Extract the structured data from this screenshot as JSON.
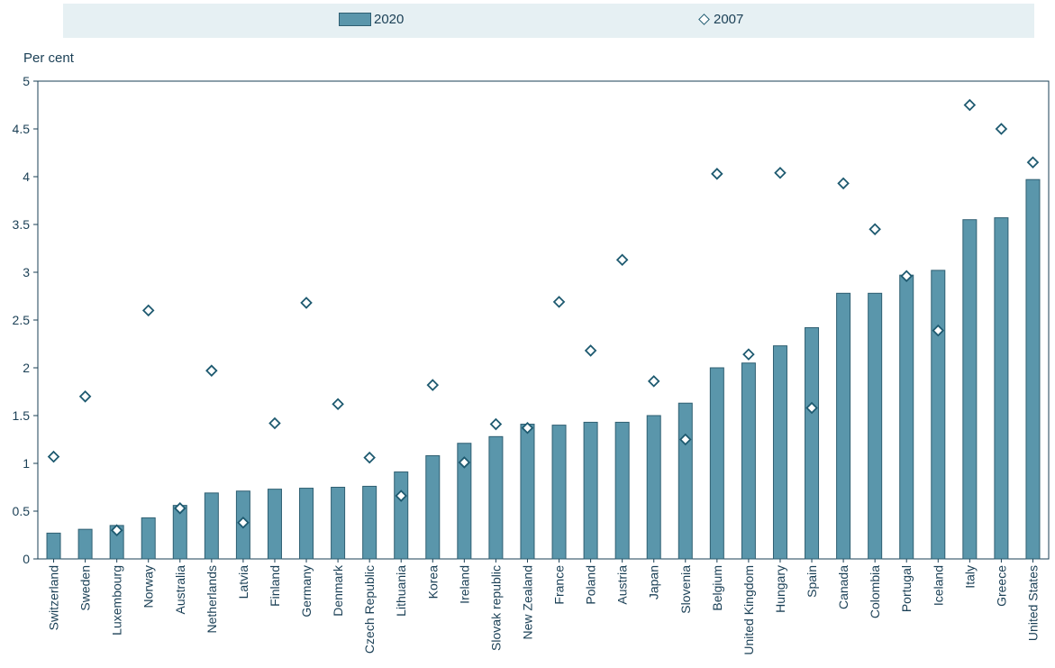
{
  "chart_data": {
    "type": "bar",
    "ylabel": "Per cent",
    "ylim": [
      0,
      5
    ],
    "yticks": [
      "0",
      "0.5",
      "1",
      "1.5",
      "2",
      "2.5",
      "3",
      "3.5",
      "4",
      "4.5",
      "5"
    ],
    "legend_position": "top",
    "colors": {
      "bar": "#5a96ab",
      "bar_edge": "#2f5f72",
      "marker": "#1e5a70",
      "axis": "#1a3f55",
      "grid": "#d9e6eb"
    },
    "categories": [
      "Switzerland",
      "Sweden",
      "Luxembourg",
      "Norway",
      "Australia",
      "Netherlands",
      "Latvia",
      "Finland",
      "Germany",
      "Denmark",
      "Czech Republic",
      "Lithuania",
      "Korea",
      "Ireland",
      "Slovak republic",
      "New Zealand",
      "France",
      "Poland",
      "Austria",
      "Japan",
      "Slovenia",
      "Belgium",
      "United Kingdom",
      "Hungary",
      "Spain",
      "Canada",
      "Colombia",
      "Portugal",
      "Iceland",
      "Italy",
      "Greece",
      "United States"
    ],
    "series": [
      {
        "name": "2020",
        "kind": "bar",
        "values": [
          0.27,
          0.31,
          0.35,
          0.43,
          0.56,
          0.69,
          0.71,
          0.73,
          0.74,
          0.75,
          0.76,
          0.91,
          1.08,
          1.21,
          1.28,
          1.41,
          1.4,
          1.43,
          1.43,
          1.5,
          1.63,
          2.0,
          2.05,
          2.23,
          2.42,
          2.78,
          2.78,
          2.97,
          3.02,
          3.55,
          3.57,
          3.97
        ]
      },
      {
        "name": "2007",
        "kind": "diamond",
        "values": [
          1.07,
          1.7,
          0.3,
          2.6,
          0.53,
          1.97,
          0.38,
          1.42,
          2.68,
          1.62,
          1.06,
          0.66,
          1.82,
          1.01,
          1.41,
          1.37,
          2.69,
          2.18,
          3.13,
          1.86,
          1.25,
          4.03,
          2.14,
          4.04,
          1.58,
          3.93,
          3.45,
          2.96,
          2.39,
          4.75,
          4.5,
          4.15
        ]
      }
    ]
  }
}
